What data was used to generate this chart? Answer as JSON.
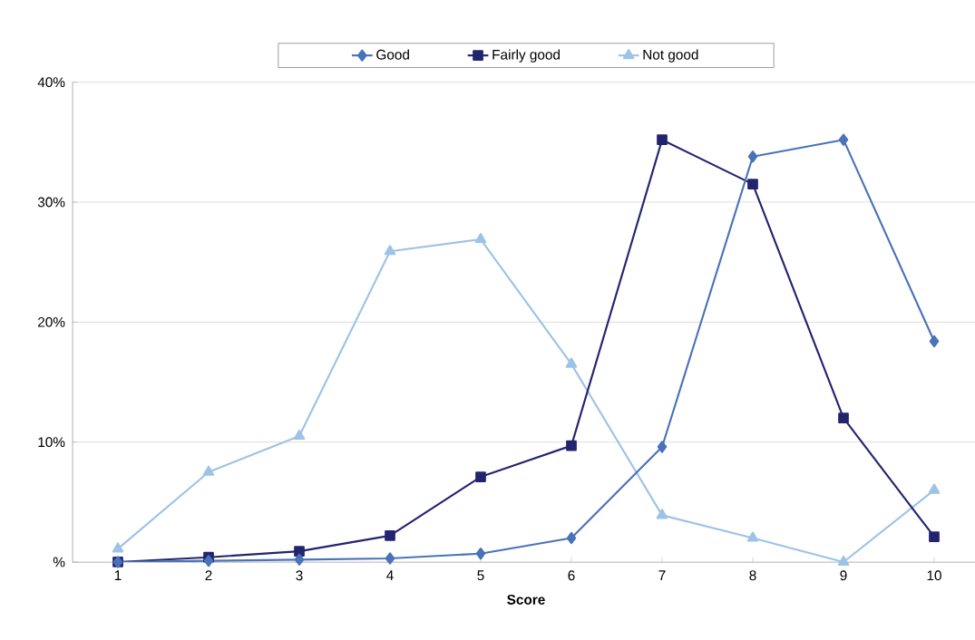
{
  "chart_data": {
    "type": "line",
    "xlabel": "Score",
    "categories": [
      "1",
      "2",
      "3",
      "4",
      "5",
      "6",
      "7",
      "8",
      "9",
      "10"
    ],
    "series": [
      {
        "name": "Good",
        "color": "#4a72b8",
        "marker": "diamond",
        "values": [
          0,
          0.1,
          0.2,
          0.3,
          0.7,
          2.0,
          9.6,
          33.8,
          35.2,
          18.4
        ]
      },
      {
        "name": "Fairly good",
        "color": "#23246e",
        "marker": "square",
        "values": [
          0,
          0.4,
          0.9,
          2.2,
          7.1,
          9.7,
          35.2,
          31.5,
          12.0,
          2.1
        ]
      },
      {
        "name": "Not good",
        "color": "#9dc3e6",
        "marker": "triangle",
        "values": [
          1.1,
          7.5,
          10.5,
          25.9,
          26.9,
          16.5,
          3.9,
          2.0,
          0,
          6.0
        ]
      }
    ],
    "ylim": [
      0,
      40
    ],
    "yticks": [
      {
        "value": 0,
        "label": "%"
      },
      {
        "value": 10,
        "label": "10%"
      },
      {
        "value": 20,
        "label": "20%"
      },
      {
        "value": 30,
        "label": "30%"
      },
      {
        "value": 40,
        "label": "40%"
      }
    ],
    "grid": "y",
    "legend": "top",
    "line_style": "solid"
  }
}
